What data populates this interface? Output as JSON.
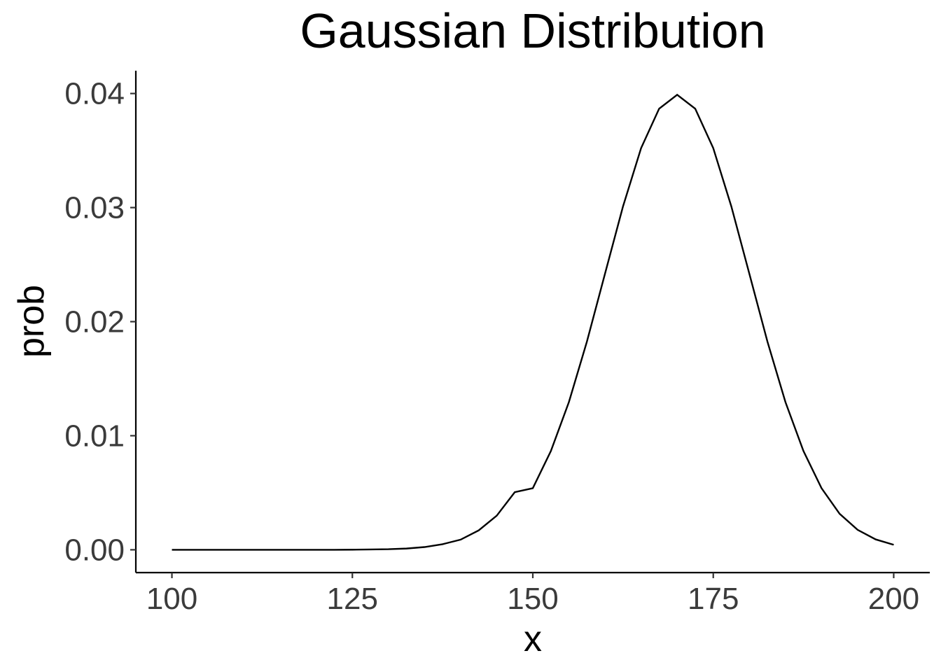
{
  "chart_data": {
    "type": "line",
    "title": "Gaussian Distribution",
    "xlabel": "x",
    "ylabel": "prob",
    "xlim": [
      95,
      205
    ],
    "ylim": [
      -0.002,
      0.042
    ],
    "x_ticks": [
      100,
      125,
      150,
      175,
      200
    ],
    "x_tick_labels": [
      "100",
      "125",
      "150",
      "175",
      "200"
    ],
    "y_ticks": [
      0,
      0.01,
      0.02,
      0.03,
      0.04
    ],
    "y_tick_labels": [
      "0.00",
      "0.01",
      "0.02",
      "0.03",
      "0.04"
    ],
    "grid": false,
    "legend": "none",
    "line_color": "#000000",
    "series": [
      {
        "x": [
          100,
          102.5,
          105,
          107.5,
          110,
          112.5,
          115,
          117.5,
          120,
          122.5,
          125,
          127.5,
          130,
          132.5,
          135,
          137.5,
          140,
          142.5,
          145,
          147.5,
          150,
          152.5,
          155,
          157.5,
          160,
          162.5,
          165,
          167.5,
          170,
          172.5,
          175,
          177.5,
          180,
          182.5,
          185,
          187.5,
          190,
          192.5,
          195,
          197.5,
          200
        ],
        "values": [
          0,
          0,
          0,
          0,
          0,
          0,
          0,
          0,
          0,
          0,
          1e-05,
          3e-05,
          5e-05,
          0.00011,
          0.00024,
          0.00049,
          0.00089,
          0.0017,
          0.00299,
          0.00505,
          0.0054,
          0.00865,
          0.01295,
          0.01826,
          0.0242,
          0.03011,
          0.03521,
          0.03867,
          0.03989,
          0.03867,
          0.03521,
          0.03011,
          0.0242,
          0.01826,
          0.01295,
          0.00865,
          0.0054,
          0.00316,
          0.00175,
          0.00091,
          0.00044
        ]
      }
    ]
  }
}
